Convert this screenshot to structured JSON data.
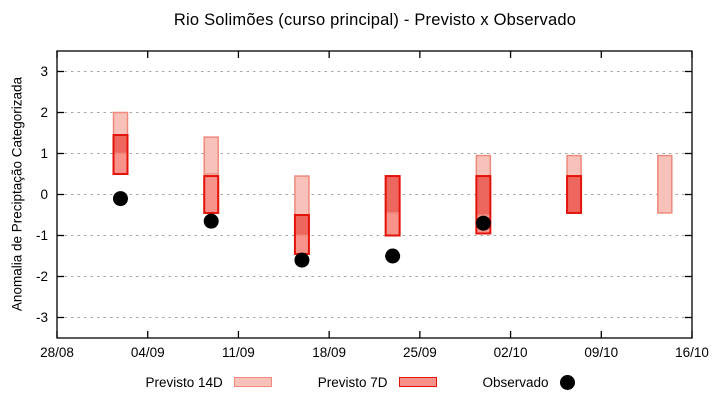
{
  "chart_data": {
    "type": "bar",
    "subtype": "forecast-range-bars-with-observed-points",
    "title": "Rio Solimões (curso principal) - Previsto x Observado",
    "ylabel": "Anomalia de Preciptação Categorizada",
    "ylim": [
      -3.5,
      3.5
    ],
    "yticks": [
      -3,
      -2,
      -1,
      0,
      1,
      2,
      3
    ],
    "xtick_labels": [
      "28/08",
      "04/09",
      "11/09",
      "18/09",
      "25/09",
      "02/10",
      "09/10",
      "16/10"
    ],
    "x_axis_span_weeks": 7,
    "grid": {
      "horizontal_dashed": true,
      "vertical": false
    },
    "x_weeks": [
      0.7,
      1.7,
      2.7,
      3.7,
      4.7,
      5.7,
      6.7
    ],
    "series": [
      {
        "name": "Previsto 14D",
        "ranges": [
          [
            1.0,
            2.0
          ],
          [
            0.5,
            1.4
          ],
          [
            -1.0,
            0.45
          ],
          [
            -0.45,
            0.45
          ],
          [
            -0.5,
            0.95
          ],
          [
            -0.45,
            0.95
          ],
          [
            -0.45,
            0.95
          ]
        ]
      },
      {
        "name": "Previsto 7D",
        "ranges": [
          [
            0.5,
            1.45
          ],
          [
            -0.45,
            0.45
          ],
          [
            -1.45,
            -0.5
          ],
          [
            -1.0,
            0.45
          ],
          [
            -0.95,
            0.45
          ],
          [
            -0.45,
            0.45
          ],
          null
        ]
      },
      {
        "name": "Observado",
        "values": [
          -0.1,
          -0.65,
          -1.6,
          -1.5,
          -0.7,
          null,
          null
        ]
      }
    ],
    "legend": {
      "position": "bottom",
      "items": [
        {
          "label": "Previsto 14D",
          "type": "box"
        },
        {
          "label": "Previsto 7D",
          "type": "box"
        },
        {
          "label": "Observado",
          "type": "point"
        }
      ]
    },
    "colors": {
      "fill_14d": "#f8c2ba",
      "fill_7d": "#f8938b",
      "fill_overlap": "#ee675e",
      "border_14d": "#ef8a7c",
      "border_7d": "#e41309",
      "observed": "#000000",
      "grid": "#a9a9a9",
      "axis": "#000000",
      "background": "#ffffff"
    }
  }
}
